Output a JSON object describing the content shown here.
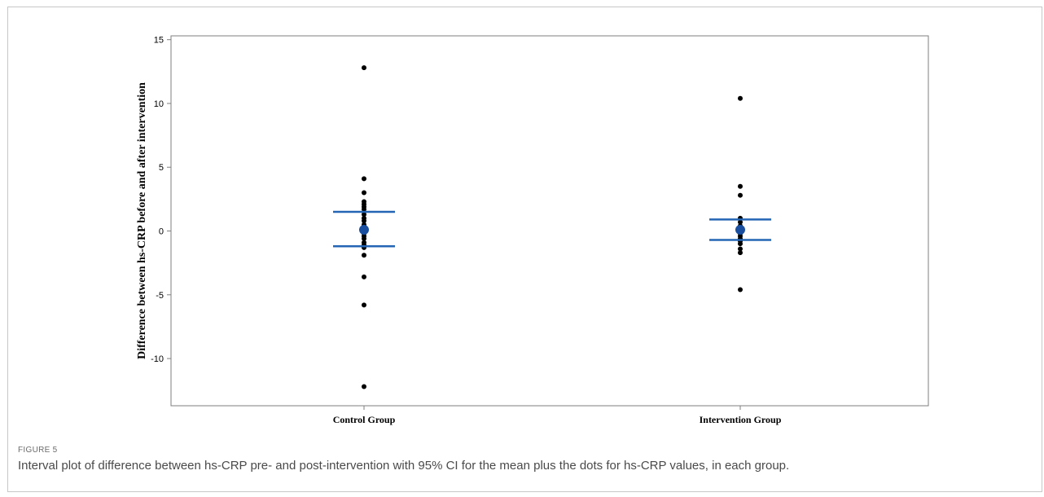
{
  "figure": {
    "label": "FIGURE 5",
    "caption": "Interval plot of difference between hs-CRP pre- and post-intervention with 95% CI for the mean plus the dots for hs-CRP values, in each group."
  },
  "colors": {
    "ci": "#2466b5",
    "mean": "#1a4fa0",
    "dots": "#000000",
    "frame": "#7f7f7f"
  },
  "chart_data": {
    "type": "interval plot",
    "title": "",
    "xlabel": "",
    "ylabel": "Difference between hs-CRP before and after intervention",
    "ylim": [
      -13.7,
      15.3
    ],
    "yticks": [
      15,
      10,
      5,
      0,
      -5,
      -10
    ],
    "ytick_labels": [
      "15",
      "10",
      "5",
      "0",
      "-5",
      "-10"
    ],
    "categories": [
      "Control Group",
      "Intervention Group"
    ],
    "groups": [
      {
        "name": "Control Group",
        "mean": 0.1,
        "ci_lower": -1.2,
        "ci_upper": 1.5,
        "points": [
          12.8,
          4.1,
          3.0,
          2.3,
          2.1,
          1.9,
          1.7,
          1.3,
          1.0,
          0.8,
          0.5,
          0.3,
          0.1,
          -0.2,
          -0.4,
          -0.6,
          -0.9,
          -1.1,
          -1.3,
          -1.9,
          -3.6,
          -5.8,
          -12.2
        ]
      },
      {
        "name": "Intervention Group",
        "mean": 0.1,
        "ci_lower": -0.7,
        "ci_upper": 0.9,
        "points": [
          10.4,
          3.5,
          2.8,
          1.0,
          0.7,
          0.4,
          0.2,
          0.0,
          -0.2,
          -0.4,
          -0.6,
          -0.8,
          -1.0,
          -1.4,
          -1.7,
          -4.6
        ]
      }
    ]
  }
}
